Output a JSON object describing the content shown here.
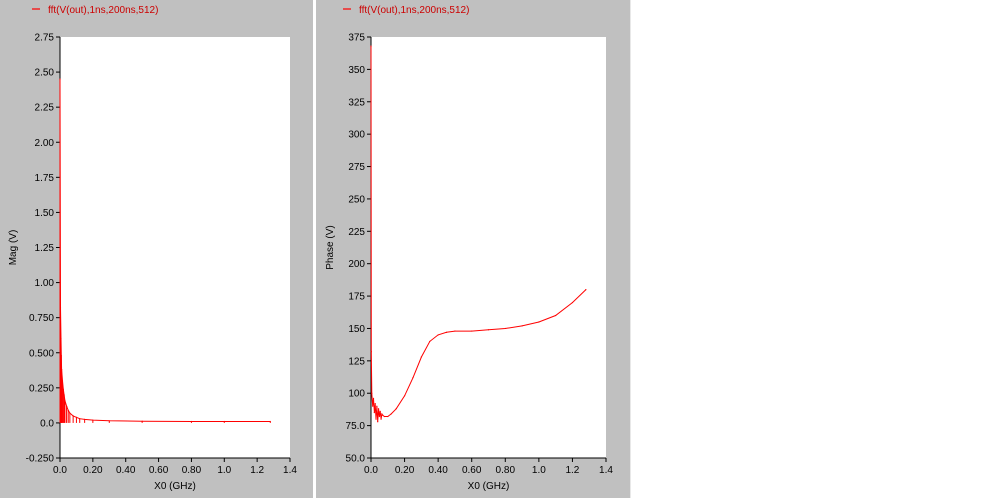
{
  "chart_data": [
    {
      "type": "line",
      "legend": "fft(V(out),1ns,200ns,512)",
      "xlabel": "X0 (GHz)",
      "ylabel": "Mag (V)",
      "xlim": [
        0,
        1.4
      ],
      "ylim": [
        -0.25,
        2.75
      ],
      "color": "#ff0000",
      "xticks": [
        "0.0",
        "0.20",
        "0.40",
        "0.60",
        "0.80",
        "1.0",
        "1.2",
        "1.4"
      ],
      "yticks": [
        "-0.250",
        "0.0",
        "0.250",
        "0.500",
        "0.750",
        "1.00",
        "1.25",
        "1.50",
        "1.75",
        "2.00",
        "2.25",
        "2.50",
        "2.75"
      ],
      "series": [
        {
          "x": [
            0,
            0.003,
            0.006,
            0.008,
            0.01,
            0.015,
            0.02,
            0.025,
            0.03,
            0.04,
            0.05,
            0.06,
            0.08,
            0.1,
            0.12,
            0.15,
            0.2,
            0.3,
            0.5,
            0.8,
            1.0,
            1.28
          ],
          "y": [
            2.45,
            0.82,
            0.6,
            0.48,
            0.38,
            0.3,
            0.24,
            0.2,
            0.16,
            0.12,
            0.09,
            0.07,
            0.05,
            0.04,
            0.03,
            0.025,
            0.02,
            0.015,
            0.012,
            0.01,
            0.01,
            0.01
          ]
        }
      ]
    },
    {
      "type": "line",
      "legend": "fft(V(out),1ns,200ns,512)",
      "xlabel": "X0 (GHz)",
      "ylabel": "Phase (V)",
      "xlim": [
        0,
        1.4
      ],
      "ylim": [
        50,
        375
      ],
      "color": "#ff0000",
      "xticks": [
        "0.0",
        "0.20",
        "0.40",
        "0.60",
        "0.80",
        "1.0",
        "1.2",
        "1.4"
      ],
      "yticks": [
        "50.0",
        "75.0",
        "100",
        "125",
        "150",
        "175",
        "200",
        "225",
        "250",
        "275",
        "300",
        "325",
        "350",
        "375"
      ],
      "series": [
        {
          "x": [
            0,
            0.002,
            0.005,
            0.01,
            0.015,
            0.02,
            0.025,
            0.03,
            0.035,
            0.04,
            0.045,
            0.05,
            0.055,
            0.06,
            0.065,
            0.07,
            0.08,
            0.1,
            0.12,
            0.15,
            0.2,
            0.25,
            0.3,
            0.35,
            0.4,
            0.45,
            0.5,
            0.6,
            0.7,
            0.8,
            0.9,
            1.0,
            1.1,
            1.2,
            1.28
          ],
          "y": [
            368,
            132,
            100,
            90,
            96,
            85,
            92,
            80,
            90,
            78,
            88,
            82,
            86,
            80,
            84,
            83,
            82,
            82,
            84,
            88,
            98,
            112,
            128,
            140,
            145,
            147,
            148,
            148,
            149,
            150,
            152,
            155,
            160,
            170,
            180
          ]
        }
      ]
    }
  ]
}
